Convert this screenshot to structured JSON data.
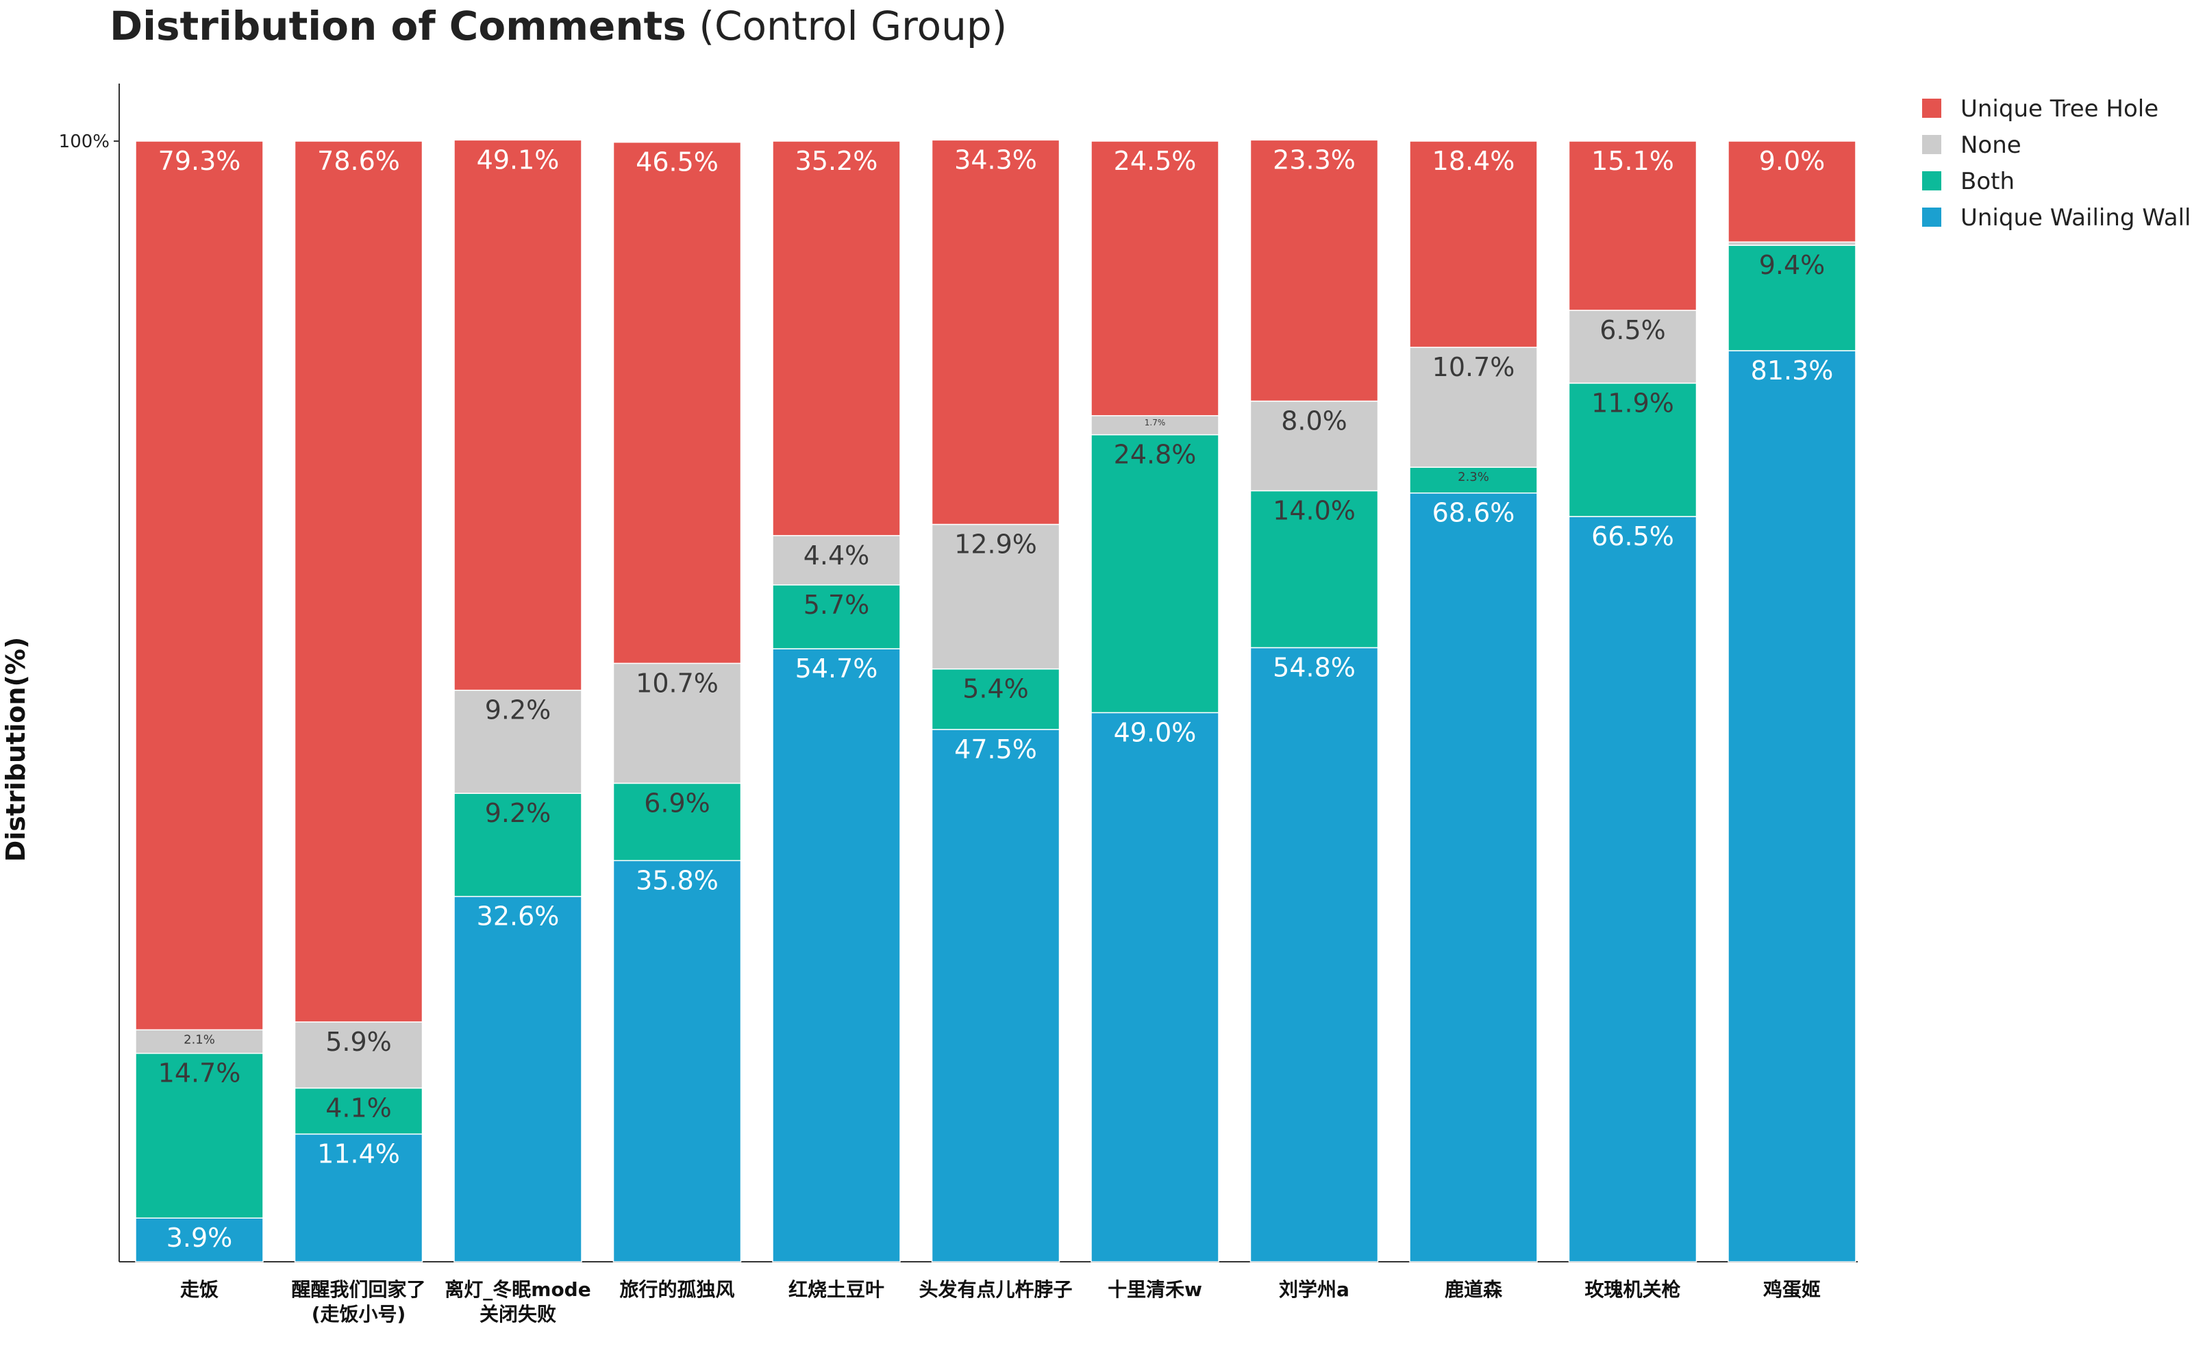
{
  "title": {
    "bold": "Distribution of Comments",
    "normal": " (Control Group)"
  },
  "colors": {
    "Unique Tree Hole": "#e4534e",
    "None": "#cccccc",
    "Both": "#0cba9a",
    "Unique Wailing Wall": "#1ba0d0"
  },
  "chart_data": {
    "type": "bar",
    "stacked": true,
    "title": "Distribution of Comments (Control Group)",
    "xlabel": "",
    "ylabel": "Distribution(%)",
    "ylim": [
      0,
      100
    ],
    "yticks": [
      "100%"
    ],
    "legend_position": "top-right, outside plot",
    "grid": false,
    "categories": [
      [
        "走饭"
      ],
      [
        "醒醒我们回家了",
        "(走饭小号)"
      ],
      [
        "离灯_冬眠mode",
        "关闭失败"
      ],
      [
        "旅行的孤独风"
      ],
      [
        "红烧土豆叶"
      ],
      [
        "头发有点儿杵脖子"
      ],
      [
        "十里清禾w"
      ],
      [
        "刘学州a"
      ],
      [
        "鹿道森"
      ],
      [
        "玫瑰机关枪"
      ],
      [
        "鸡蛋姬"
      ]
    ],
    "series": [
      {
        "name": "Unique Wailing Wall",
        "values": [
          3.9,
          11.4,
          32.6,
          35.8,
          54.7,
          47.5,
          49.0,
          54.8,
          68.6,
          66.5,
          81.3
        ],
        "labels": [
          "3.9%",
          "11.4%",
          "32.6%",
          "35.8%",
          "54.7%",
          "47.5%",
          "49.0%",
          "54.8%",
          "68.6%",
          "66.5%",
          "81.3%"
        ]
      },
      {
        "name": "Both",
        "values": [
          14.7,
          4.1,
          9.2,
          6.9,
          5.7,
          5.4,
          24.8,
          14.0,
          2.3,
          11.9,
          9.4
        ],
        "labels": [
          "14.7%",
          "4.1%",
          "9.2%",
          "6.9%",
          "5.7%",
          "5.4%",
          "24.8%",
          "14.0%",
          "2.3%",
          "11.9%",
          "9.4%"
        ]
      },
      {
        "name": "None",
        "values": [
          2.1,
          5.9,
          9.2,
          10.7,
          4.4,
          12.9,
          1.7,
          8.0,
          10.7,
          6.5,
          0.3
        ],
        "labels": [
          "2.1%",
          "5.9%",
          "9.2%",
          "10.7%",
          "4.4%",
          "12.9%",
          "1.7%",
          "8.0%",
          "10.7%",
          "6.5%",
          ""
        ]
      },
      {
        "name": "Unique Tree Hole",
        "values": [
          79.3,
          78.6,
          49.1,
          46.5,
          35.2,
          34.3,
          24.5,
          23.3,
          18.4,
          15.1,
          9.0
        ],
        "labels": [
          "79.3%",
          "78.6%",
          "49.1%",
          "46.5%",
          "35.2%",
          "34.3%",
          "24.5%",
          "23.3%",
          "18.4%",
          "15.1%",
          "9.0%"
        ]
      }
    ],
    "legend_order": [
      "Unique Tree Hole",
      "None",
      "Both",
      "Unique Wailing Wall"
    ]
  }
}
